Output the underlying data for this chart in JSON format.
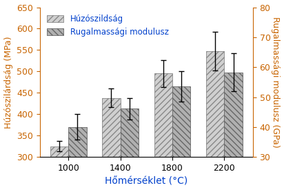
{
  "categories": [
    "1000",
    "1400",
    "1800",
    "2200"
  ],
  "series1_values": [
    325,
    438,
    495,
    547
  ],
  "series1_errors": [
    12,
    22,
    32,
    45
  ],
  "series2_values": [
    370,
    413,
    465,
    498
  ],
  "series2_errors": [
    30,
    25,
    35,
    45
  ],
  "series1_label": "Húzószildság",
  "series2_label": "Rugalmassági modulusz",
  "xlabel": "Hőmérséklet (°C)",
  "ylabel_left": "Húzószilárdság (MPa)",
  "ylabel_right": "Rugalmassági modulusz (GPa)",
  "ylim_left": [
    300,
    650
  ],
  "ylim_right": [
    30,
    80
  ],
  "yticks_left": [
    300,
    350,
    400,
    450,
    500,
    550,
    600,
    650
  ],
  "yticks_right": [
    30,
    40,
    50,
    60,
    70,
    80
  ],
  "bar_color1": "#d0d0d0",
  "bar_color2": "#b0b0b0",
  "hatch1": "////",
  "hatch2": "\\\\\\\\",
  "bar_width": 0.35,
  "label_color": "#c86400",
  "legend_text_color": "#0040cc",
  "xlabel_color": "#0040cc",
  "tick_color_left": "#c86400",
  "tick_color_right": "#c86400",
  "spine_color": "#c86400",
  "figsize": [
    4.12,
    2.75
  ],
  "dpi": 100
}
